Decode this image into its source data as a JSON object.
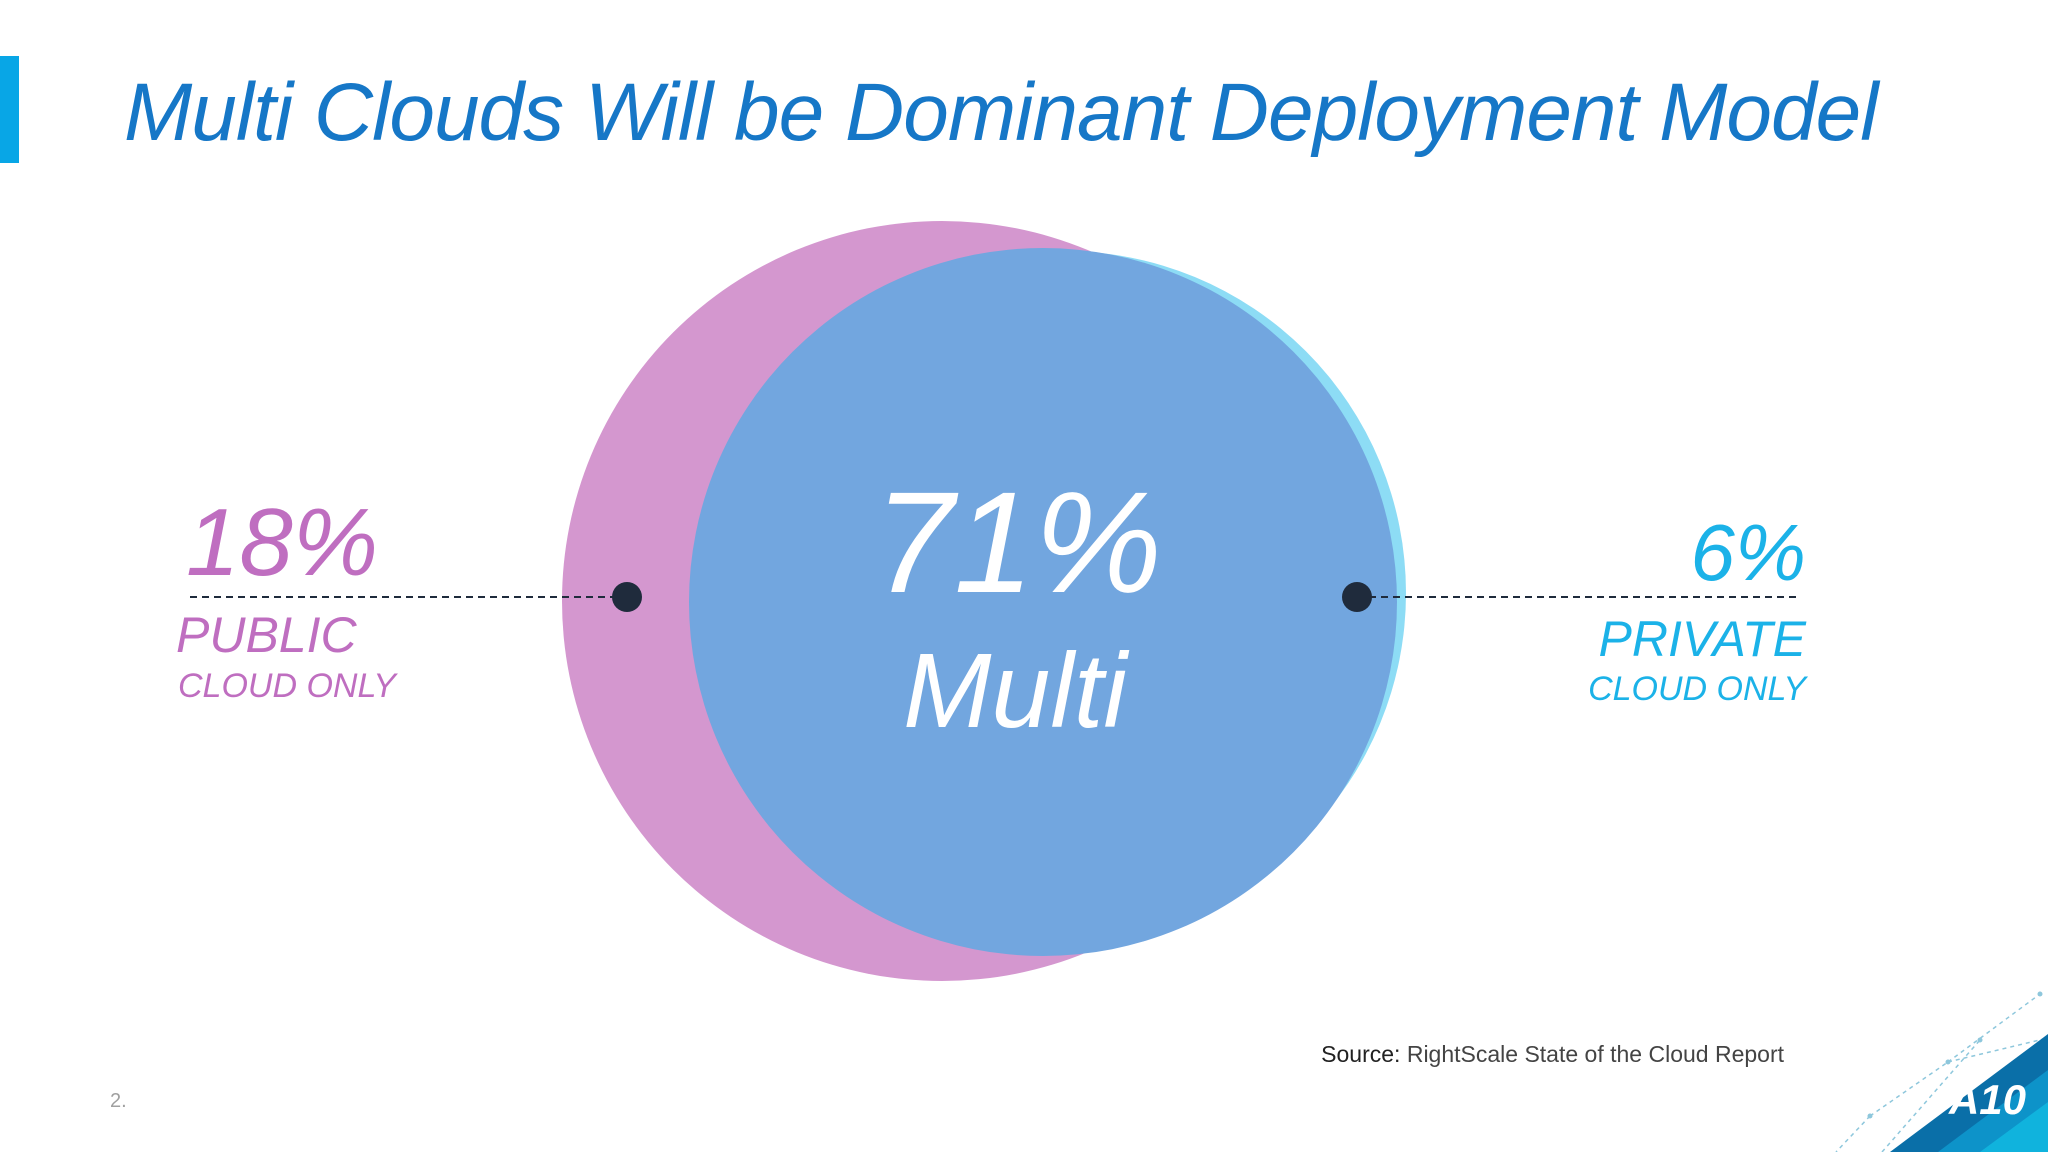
{
  "title": "Multi Clouds Will be Dominant Deployment Model",
  "colors": {
    "title": "#1677c7",
    "accent_bar": "#08a6e6",
    "public": "#bf6ec0",
    "public_fill": "#d497cf",
    "private": "#1bb2e8",
    "private_fill": "#8ddcf5",
    "multi_fill": "#72a6df",
    "marker": "#1f2b3c",
    "multi_text": "#ffffff"
  },
  "chart_data": {
    "type": "venn",
    "title": "Multi Clouds Will be Dominant Deployment Model",
    "segments": [
      {
        "key": "public",
        "value": 18,
        "value_label": "18%",
        "label_line1": "PUBLIC",
        "label_line2": "CLOUD ONLY"
      },
      {
        "key": "multi",
        "value": 71,
        "value_label": "71%",
        "label_line1": "Multi"
      },
      {
        "key": "private",
        "value": 6,
        "value_label": "6%",
        "label_line1": "PRIVATE",
        "label_line2": "CLOUD ONLY"
      }
    ]
  },
  "source": {
    "label": "Source:",
    "text": "RightScale State of the Cloud Report"
  },
  "page_number": "2.",
  "logo": {
    "text": "A10",
    "icon": "a10-logo"
  }
}
